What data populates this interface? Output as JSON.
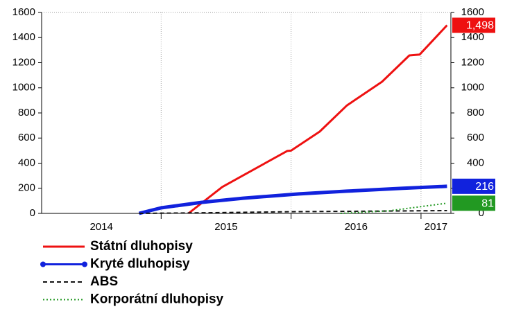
{
  "chart_data": {
    "type": "line",
    "xlim": [
      2014.08,
      2017.23
    ],
    "xticks": [
      2014,
      2015,
      2016,
      2017
    ],
    "ylim": [
      0,
      1600
    ],
    "yticks": [
      0,
      200,
      400,
      600,
      800,
      1000,
      1200,
      1400,
      1600
    ],
    "y2lim": [
      0,
      1600
    ],
    "y2ticks": [
      0,
      200,
      400,
      600,
      800,
      1000,
      1200,
      1400,
      1600
    ],
    "grid": "x",
    "series": [
      {
        "name": "Státní dluhopisy",
        "color": "#ee1111",
        "dash": "solid",
        "width": 3,
        "x": [
          2015.21,
          2015.47,
          2015.97,
          2016.0,
          2016.22,
          2016.43,
          2016.7,
          2016.91,
          2016.99,
          2017.2
        ],
        "values": [
          0,
          210,
          497,
          500,
          651,
          860,
          1048,
          1258,
          1265,
          1498
        ],
        "end_label": {
          "value": 1498,
          "label": "1,498"
        }
      },
      {
        "name": "Kryté dluhopisy",
        "color": "#1122dd",
        "dash": "solid",
        "width": 5,
        "x": [
          2014.83,
          2015.0,
          2015.31,
          2015.63,
          2016.06,
          2016.43,
          2016.86,
          2017.2
        ],
        "values": [
          0,
          44,
          88,
          121,
          155,
          177,
          200,
          216
        ],
        "end_label": 216
      },
      {
        "name": "ABS",
        "color": "#111111",
        "dash": "dashed",
        "width": 2,
        "x": [
          2014.83,
          2015.36,
          2016.06,
          2017.2
        ],
        "values": [
          0,
          5,
          14,
          22
        ]
      },
      {
        "name": "Korporátní dluhopisy",
        "color": "#229922",
        "dash": "dotted",
        "width": 2,
        "x": [
          2016.38,
          2016.75,
          2017.2
        ],
        "values": [
          0,
          20,
          81
        ],
        "end_label": 81
      }
    ]
  }
}
